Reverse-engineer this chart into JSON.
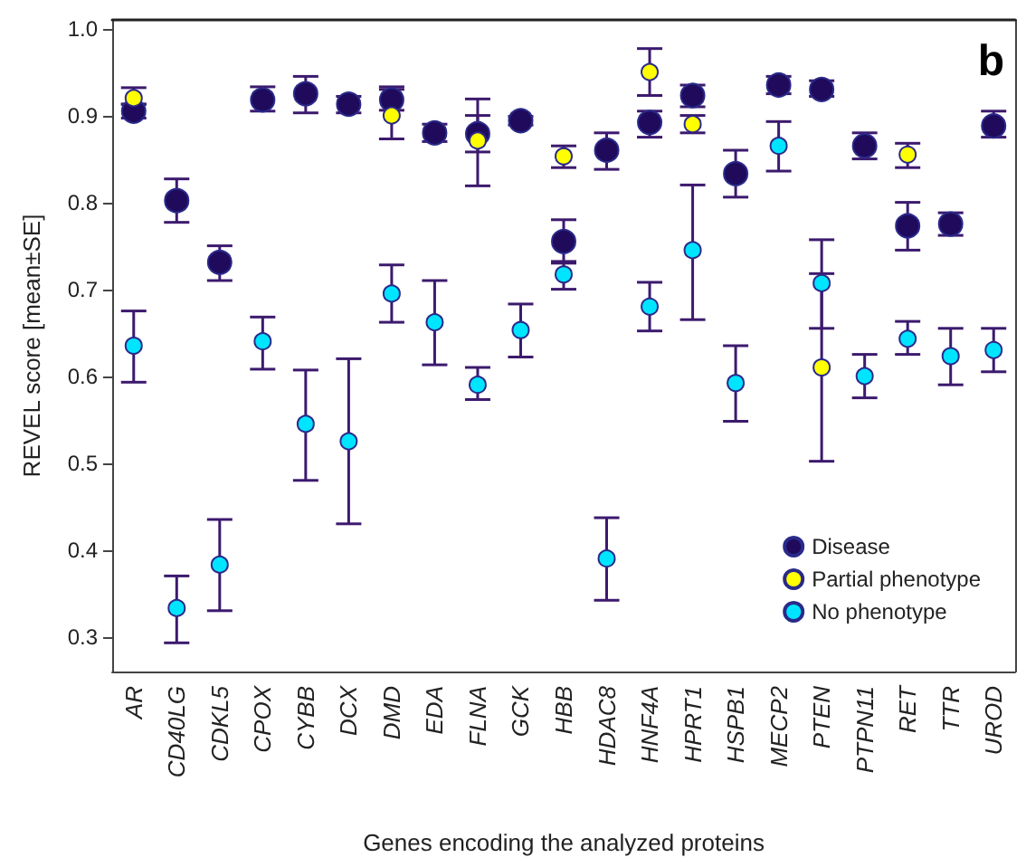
{
  "chart_data": {
    "type": "scatter",
    "ylabel": "REVEL score [mean±SE]",
    "xlabel": "Genes encoding the analyzed proteins",
    "annotations": [
      "b"
    ],
    "categories": [
      "AR",
      "CD40LG",
      "CDKL5",
      "CPOX",
      "CYBB",
      "DCX",
      "DMD",
      "EDA",
      "FLNA",
      "GCK",
      "HBB",
      "HDAC8",
      "HNF4A",
      "HPRT1",
      "HSPB1",
      "MECP2",
      "PTEN",
      "PTPN11",
      "RET",
      "TTR",
      "UROD"
    ],
    "ylim": [
      0.26,
      1.01
    ],
    "yticks": [
      0.3,
      0.4,
      0.5,
      0.6,
      0.7,
      0.8,
      0.9,
      {
        "value": 1,
        "label": "1.0"
      }
    ],
    "grid": false,
    "legend": "bottom right",
    "marker": "circle",
    "series": [
      {
        "name": "Disease",
        "color": "#1f0a5c",
        "values": [
          0.905,
          0.802,
          0.731,
          0.918,
          0.925,
          0.913,
          0.918,
          0.88,
          0.879,
          0.894,
          0.755,
          0.86,
          0.892,
          0.923,
          0.833,
          0.935,
          0.93,
          0.865,
          0.773,
          0.775,
          0.888
        ],
        "errors": [
          [
            0.897,
            0.913
          ],
          [
            0.777,
            0.827
          ],
          [
            0.71,
            0.75
          ],
          [
            0.905,
            0.933
          ],
          [
            0.903,
            0.945
          ],
          [
            0.903,
            0.922
          ],
          [
            0.906,
            0.93
          ],
          [
            0.87,
            0.89
          ],
          [
            0.858,
            0.9
          ],
          [
            0.889,
            0.899
          ],
          [
            0.73,
            0.78
          ],
          [
            0.838,
            0.88
          ],
          [
            0.875,
            0.905
          ],
          [
            0.91,
            0.935
          ],
          [
            0.806,
            0.86
          ],
          [
            0.925,
            0.945
          ],
          [
            0.922,
            0.94
          ],
          [
            0.85,
            0.88
          ],
          [
            0.745,
            0.8
          ],
          [
            0.762,
            0.788
          ],
          [
            0.875,
            0.905
          ]
        ]
      },
      {
        "name": "Partial phenotype",
        "color": "#ffff00",
        "values": [
          0.92,
          null,
          null,
          null,
          null,
          null,
          0.9,
          null,
          0.871,
          null,
          0.853,
          null,
          0.95,
          0.89,
          null,
          null,
          0.61,
          null,
          0.855,
          null,
          null
        ],
        "errors": [
          [
            0.913,
            0.932
          ],
          null,
          null,
          null,
          null,
          null,
          [
            0.873,
            0.933
          ],
          null,
          [
            0.819,
            0.919
          ],
          null,
          [
            0.84,
            0.865
          ],
          null,
          [
            0.923,
            0.977
          ],
          [
            0.88,
            0.9
          ],
          null,
          null,
          [
            0.502,
            0.718
          ],
          null,
          [
            0.84,
            0.868
          ],
          null,
          null
        ]
      },
      {
        "name": "No phenotype",
        "color": "#00e5ff",
        "values": [
          0.635,
          0.333,
          0.383,
          0.64,
          0.545,
          0.525,
          0.695,
          0.662,
          0.59,
          0.653,
          0.717,
          0.39,
          0.68,
          0.745,
          0.592,
          0.865,
          0.707,
          0.6,
          0.643,
          0.623,
          0.63
        ],
        "errors": [
          [
            0.593,
            0.675
          ],
          [
            0.293,
            0.37
          ],
          [
            0.33,
            0.435
          ],
          [
            0.608,
            0.668
          ],
          [
            0.48,
            0.607
          ],
          [
            0.43,
            0.62
          ],
          [
            0.662,
            0.728
          ],
          [
            0.613,
            0.71
          ],
          [
            0.573,
            0.61
          ],
          [
            0.622,
            0.683
          ],
          [
            0.7,
            0.732
          ],
          [
            0.342,
            0.437
          ],
          [
            0.652,
            0.708
          ],
          [
            0.665,
            0.82
          ],
          [
            0.548,
            0.635
          ],
          [
            0.836,
            0.893
          ],
          [
            0.655,
            0.757
          ],
          [
            0.575,
            0.625
          ],
          [
            0.625,
            0.663
          ],
          [
            0.59,
            0.655
          ],
          [
            0.605,
            0.655
          ]
        ]
      }
    ]
  }
}
